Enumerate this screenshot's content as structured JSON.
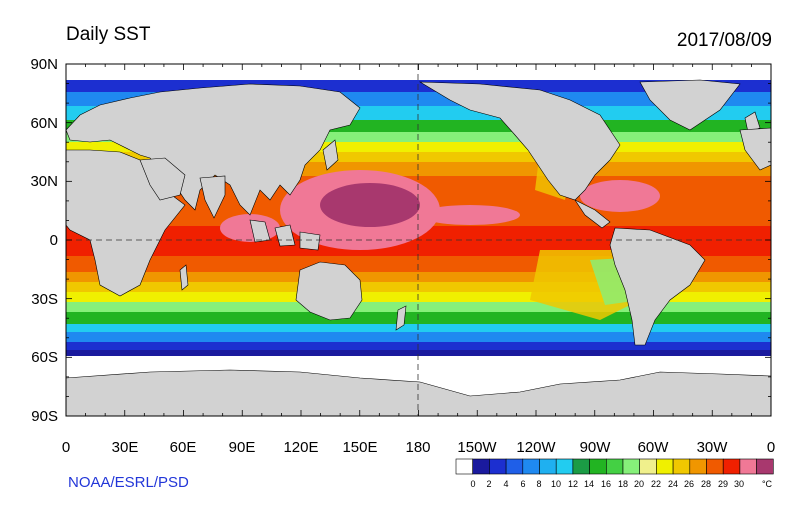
{
  "header": {
    "title": "Daily SST",
    "date": "2017/08/09"
  },
  "credit": "NOAA/ESRL/PSD",
  "axes": {
    "lat_labels": [
      "90N",
      "60N",
      "30N",
      "0",
      "30S",
      "60S",
      "90S"
    ],
    "lon_labels": [
      "0",
      "30E",
      "60E",
      "90E",
      "120E",
      "150E",
      "180",
      "150W",
      "120W",
      "90W",
      "60W",
      "30W",
      "0"
    ]
  },
  "colorbar": {
    "ticks": [
      "0",
      "2",
      "4",
      "6",
      "8",
      "10",
      "12",
      "14",
      "16",
      "18",
      "20",
      "22",
      "24",
      "26",
      "28",
      "29",
      "30"
    ],
    "unit": "°C",
    "colors": [
      "#ffffff",
      "#1a1a9e",
      "#1c2fd0",
      "#1f5fe8",
      "#1f89f0",
      "#1fb0f0",
      "#22ccf0",
      "#1b9c45",
      "#22b422",
      "#44d044",
      "#86f07a",
      "#f0f08c",
      "#f0f000",
      "#f0c800",
      "#f09600",
      "#f05a00",
      "#f02000",
      "#f07896",
      "#a8386e"
    ]
  },
  "map": {
    "land_color": "#d2d2d2",
    "sea_ice_color": "#ffffff"
  }
}
